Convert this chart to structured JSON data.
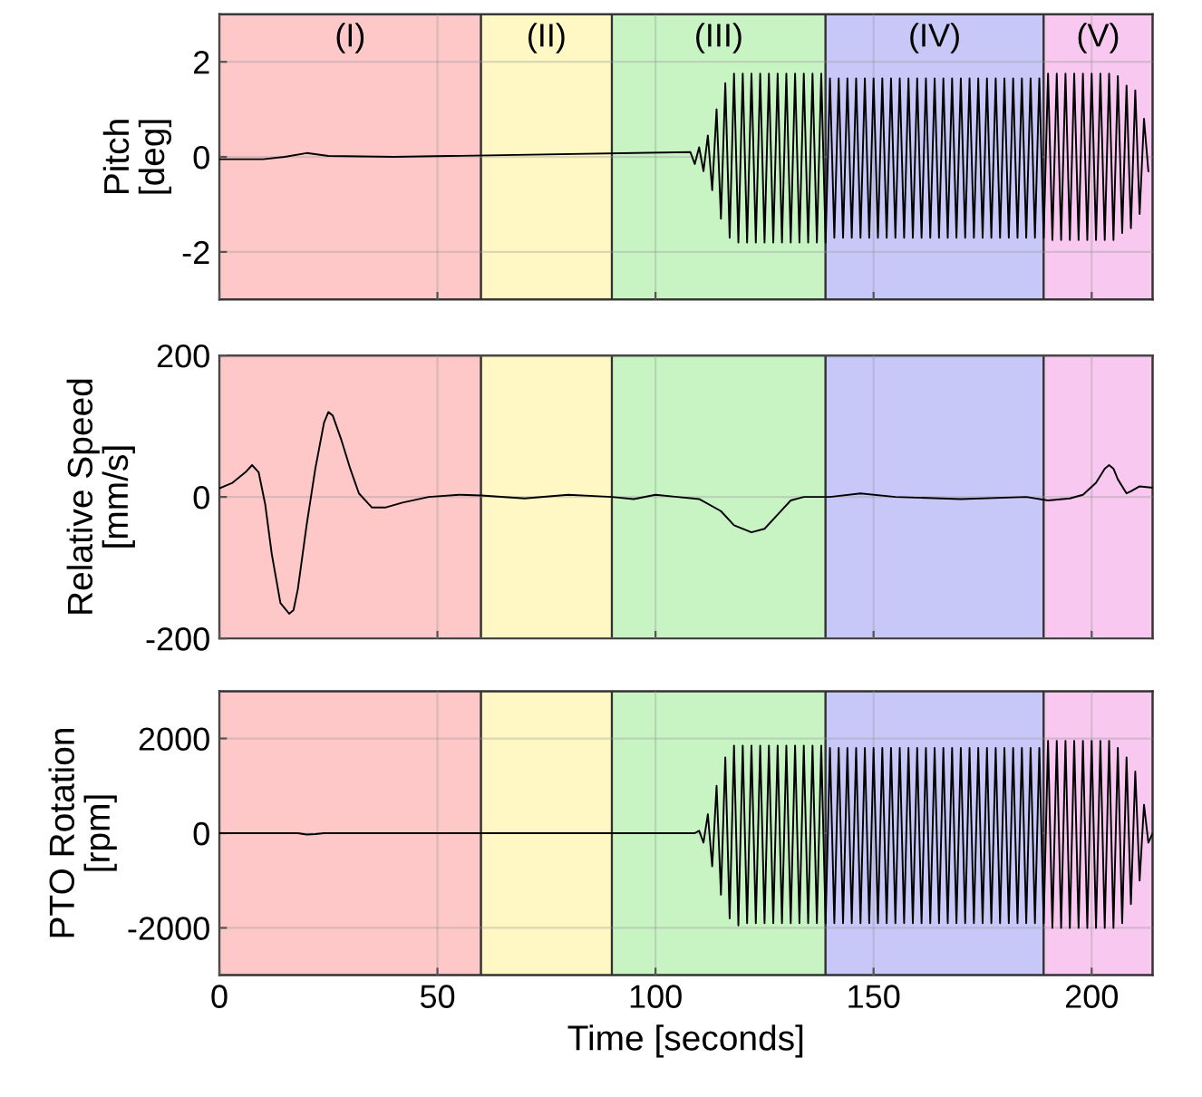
{
  "chart_data": [
    {
      "type": "line",
      "ylabel": "Pitch\n[deg]",
      "xlim": [
        0,
        214
      ],
      "ylim": [
        -3,
        3
      ],
      "yticks": [
        -2,
        0,
        2
      ],
      "xticks": [
        0,
        50,
        100,
        150,
        200
      ],
      "tick_labels": "y",
      "grid": true,
      "bands": [
        {
          "axis": "x",
          "from": 0,
          "to": 60,
          "label": "(I)",
          "color": "#ffc8c8"
        },
        {
          "axis": "x",
          "from": 60,
          "to": 90,
          "label": "(II)",
          "color": "#fff8c4"
        },
        {
          "axis": "x",
          "from": 90,
          "to": 139,
          "label": "(III)",
          "color": "#c8f4c4"
        },
        {
          "axis": "x",
          "from": 139,
          "to": 189,
          "label": "(IV)",
          "color": "#c8c8f8"
        },
        {
          "axis": "x",
          "from": 189,
          "to": 214,
          "label": "(V)",
          "color": "#f8c8f0"
        }
      ],
      "series": [
        {
          "color": "#000000",
          "x": [
            0,
            10,
            15,
            20,
            25,
            40,
            108,
            109,
            110,
            111,
            112,
            113,
            114,
            115,
            116,
            117,
            118,
            119,
            120,
            121,
            122,
            123,
            124,
            125,
            126,
            127,
            128,
            129,
            130,
            131,
            132,
            133,
            134,
            135,
            136,
            137,
            138,
            139,
            140,
            141,
            142,
            143,
            144,
            145,
            146,
            147,
            148,
            149,
            150,
            151,
            152,
            153,
            154,
            155,
            156,
            157,
            158,
            159,
            160,
            161,
            162,
            163,
            164,
            165,
            166,
            167,
            168,
            169,
            170,
            171,
            172,
            173,
            174,
            175,
            176,
            177,
            178,
            179,
            180,
            181,
            182,
            183,
            184,
            185,
            186,
            187,
            188,
            189,
            190,
            191,
            192,
            193,
            194,
            195,
            196,
            197,
            198,
            199,
            200,
            201,
            202,
            203,
            204,
            205,
            206,
            207,
            208,
            209,
            210,
            211,
            212,
            213
          ],
          "values": [
            -0.05,
            -0.05,
            0.0,
            0.08,
            0.02,
            0,
            0.1,
            -0.15,
            0.2,
            -0.3,
            0.45,
            -0.7,
            1.0,
            -1.3,
            1.55,
            -1.7,
            1.75,
            -1.8,
            1.75,
            -1.8,
            1.75,
            -1.8,
            1.75,
            -1.8,
            1.75,
            -1.8,
            1.75,
            -1.8,
            1.75,
            -1.8,
            1.75,
            -1.8,
            1.75,
            -1.8,
            1.75,
            -1.8,
            1.75,
            -1.8,
            1.65,
            -1.7,
            1.65,
            -1.7,
            1.65,
            -1.7,
            1.65,
            -1.7,
            1.65,
            -1.7,
            1.65,
            -1.7,
            1.65,
            -1.7,
            1.65,
            -1.7,
            1.65,
            -1.7,
            1.65,
            -1.7,
            1.65,
            -1.7,
            1.65,
            -1.7,
            1.65,
            -1.7,
            1.65,
            -1.7,
            1.65,
            -1.7,
            1.65,
            -1.7,
            1.65,
            -1.7,
            1.65,
            -1.7,
            1.65,
            -1.7,
            1.65,
            -1.7,
            1.65,
            -1.7,
            1.65,
            -1.7,
            1.65,
            -1.7,
            1.65,
            -1.7,
            1.65,
            -1.7,
            1.75,
            -1.75,
            1.75,
            -1.75,
            1.75,
            -1.75,
            1.75,
            -1.75,
            1.75,
            -1.75,
            1.75,
            -1.75,
            1.75,
            -1.75,
            1.75,
            -1.75,
            1.7,
            -1.6,
            1.5,
            -1.5,
            1.4,
            -1.2,
            0.8,
            -0.3
          ]
        }
      ]
    },
    {
      "type": "line",
      "ylabel": "Relative Speed\n[mm/s]",
      "xlim": [
        0,
        214
      ],
      "ylim": [
        -200,
        200
      ],
      "yticks": [
        -200,
        0,
        200
      ],
      "xticks": [
        0,
        50,
        100,
        150,
        200
      ],
      "tick_labels": "y",
      "grid": true,
      "bands": [
        {
          "axis": "x",
          "from": 0,
          "to": 60,
          "color": "#ffc8c8"
        },
        {
          "axis": "x",
          "from": 60,
          "to": 90,
          "color": "#fff8c4"
        },
        {
          "axis": "x",
          "from": 90,
          "to": 139,
          "color": "#c8f4c4"
        },
        {
          "axis": "x",
          "from": 139,
          "to": 189,
          "color": "#c8c8f8"
        },
        {
          "axis": "x",
          "from": 189,
          "to": 214,
          "color": "#f8c8f0"
        }
      ],
      "series": [
        {
          "color": "#000000",
          "x": [
            0,
            3,
            6,
            7.5,
            9,
            10.5,
            12,
            14,
            16,
            17,
            18,
            20,
            22,
            24,
            25,
            26,
            28,
            30,
            32,
            35,
            38,
            42,
            48,
            55,
            60,
            70,
            80,
            90,
            95,
            100,
            105,
            110,
            115,
            118,
            122,
            125,
            128,
            131,
            134,
            140,
            147,
            155,
            170,
            185,
            190,
            195,
            198,
            201,
            203,
            204,
            205,
            206,
            208,
            209,
            211,
            214
          ],
          "values": [
            12,
            20,
            35,
            45,
            35,
            -10,
            -80,
            -150,
            -165,
            -160,
            -130,
            -40,
            40,
            105,
            120,
            115,
            80,
            40,
            5,
            -15,
            -15,
            -8,
            0,
            3,
            2,
            -2,
            3,
            0,
            -3,
            3,
            0,
            -3,
            -20,
            -40,
            -50,
            -45,
            -25,
            -5,
            0,
            0,
            5,
            0,
            -3,
            0,
            -5,
            -2,
            3,
            20,
            40,
            45,
            40,
            25,
            5,
            8,
            15,
            13
          ]
        }
      ]
    },
    {
      "type": "line",
      "ylabel": "PTO Rotation\n[rpm]",
      "xlabel": "Time [seconds]",
      "xlim": [
        0,
        214
      ],
      "ylim": [
        -3000,
        3000
      ],
      "yticks": [
        -2000,
        0,
        2000
      ],
      "xticks": [
        0,
        50,
        100,
        150,
        200
      ],
      "grid": true,
      "bands": [
        {
          "axis": "x",
          "from": 0,
          "to": 60,
          "color": "#ffc8c8"
        },
        {
          "axis": "x",
          "from": 60,
          "to": 90,
          "color": "#fff8c4"
        },
        {
          "axis": "x",
          "from": 90,
          "to": 139,
          "color": "#c8f4c4"
        },
        {
          "axis": "x",
          "from": 139,
          "to": 189,
          "color": "#c8c8f8"
        },
        {
          "axis": "x",
          "from": 189,
          "to": 214,
          "color": "#f8c8f0"
        }
      ],
      "series": [
        {
          "color": "#000000",
          "x": [
            0,
            18,
            20,
            22,
            24,
            109,
            110,
            111,
            112,
            113,
            114,
            115,
            116,
            117,
            118,
            119,
            120,
            121,
            122,
            123,
            124,
            125,
            126,
            127,
            128,
            129,
            130,
            131,
            132,
            133,
            134,
            135,
            136,
            137,
            138,
            139,
            140,
            141,
            142,
            143,
            144,
            145,
            146,
            147,
            148,
            149,
            150,
            151,
            152,
            153,
            154,
            155,
            156,
            157,
            158,
            159,
            160,
            161,
            162,
            163,
            164,
            165,
            166,
            167,
            168,
            169,
            170,
            171,
            172,
            173,
            174,
            175,
            176,
            177,
            178,
            179,
            180,
            181,
            182,
            183,
            184,
            185,
            186,
            187,
            188,
            189,
            190,
            191,
            192,
            193,
            194,
            195,
            196,
            197,
            198,
            199,
            200,
            201,
            202,
            203,
            204,
            205,
            206,
            207,
            208,
            209,
            210,
            211,
            212,
            213,
            214
          ],
          "values": [
            0,
            0,
            -30,
            -20,
            0,
            0,
            50,
            -200,
            400,
            -700,
            1000,
            -1300,
            1600,
            -1800,
            1850,
            -1950,
            1850,
            -1900,
            1850,
            -1900,
            1850,
            -1900,
            1850,
            -1900,
            1850,
            -1900,
            1850,
            -1900,
            1850,
            -1900,
            1850,
            -1900,
            1850,
            -1900,
            1850,
            -1900,
            1800,
            -1900,
            1800,
            -1900,
            1800,
            -1900,
            1800,
            -1900,
            1800,
            -1900,
            1800,
            -1900,
            1800,
            -1900,
            1800,
            -1900,
            1800,
            -1900,
            1800,
            -1900,
            1800,
            -1900,
            1800,
            -1900,
            1800,
            -1900,
            1800,
            -1900,
            1800,
            -1900,
            1800,
            -1900,
            1800,
            -1900,
            1800,
            -1900,
            1800,
            -1900,
            1800,
            -1900,
            1800,
            -1900,
            1800,
            -1900,
            1800,
            -1900,
            1800,
            -1900,
            1800,
            -1900,
            1950,
            -2000,
            1950,
            -2000,
            1950,
            -2000,
            1950,
            -2000,
            1950,
            -2000,
            1950,
            -2000,
            1950,
            -2000,
            1950,
            -2000,
            1800,
            -1900,
            1600,
            -1500,
            1300,
            -1000,
            600,
            -200,
            0
          ]
        }
      ]
    }
  ]
}
